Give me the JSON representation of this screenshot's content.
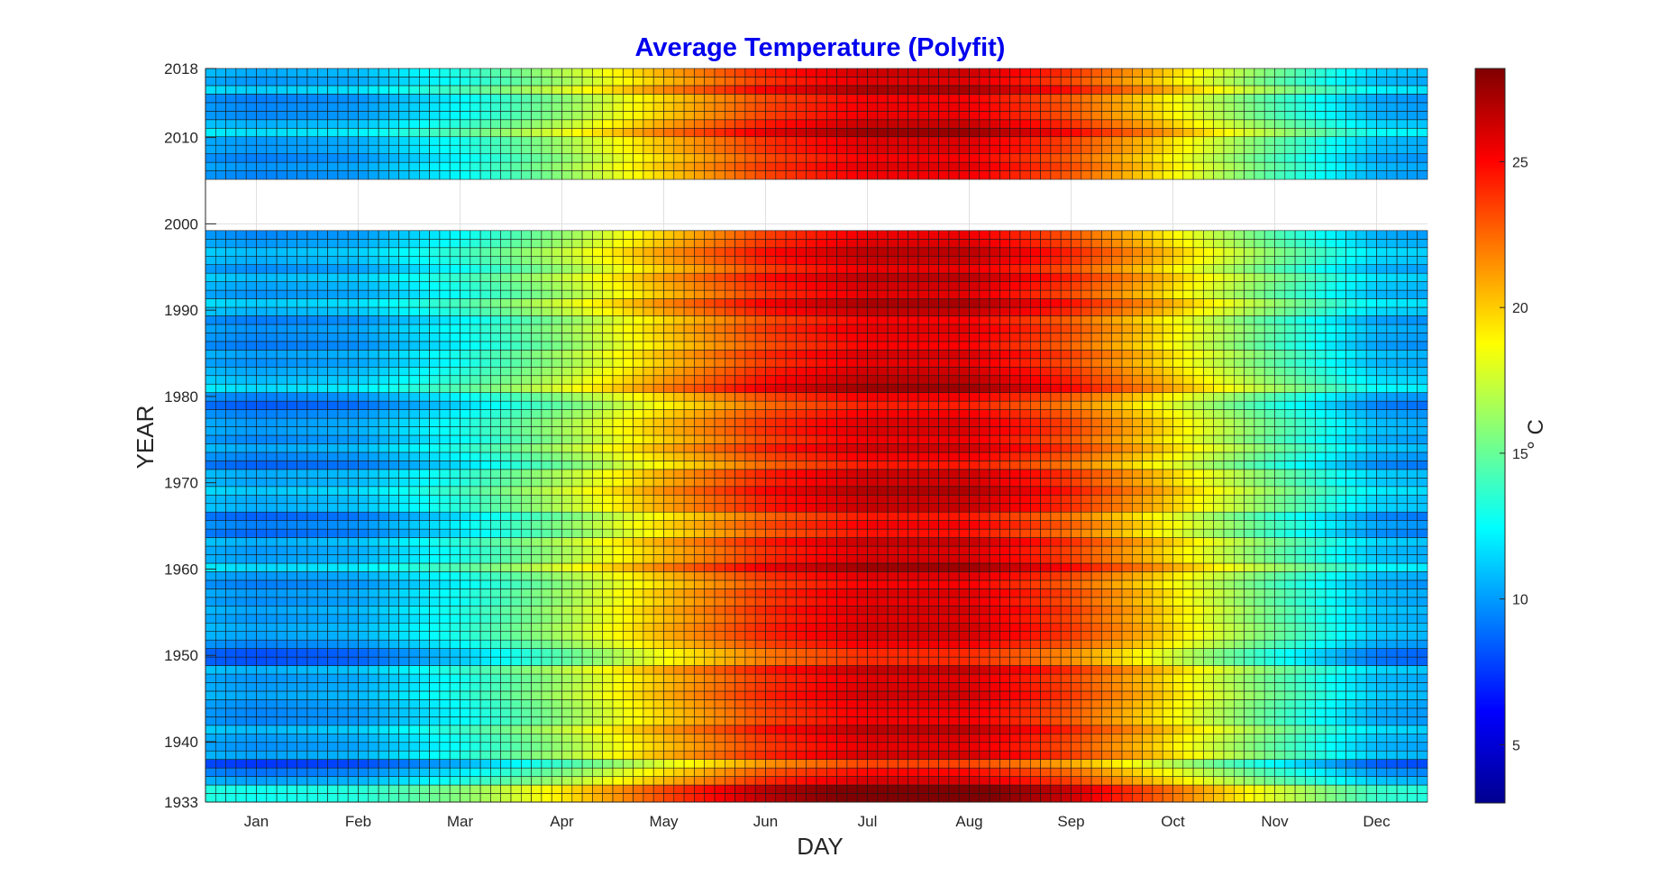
{
  "chart_data": {
    "type": "heatmap",
    "title": "Average Temperature (Polyfit)",
    "xlabel": "DAY",
    "ylabel": "YEAR",
    "colorbar_label": "° C",
    "x_ticks": [
      "Jan",
      "Feb",
      "Mar",
      "Apr",
      "May",
      "Jun",
      "Jul",
      "Aug",
      "Sep",
      "Oct",
      "Nov",
      "Dec"
    ],
    "y_ticks": [
      1933,
      1940,
      1950,
      1960,
      1970,
      1980,
      1990,
      2000,
      2010,
      2018
    ],
    "y_range": [
      1933,
      2018
    ],
    "colorbar_ticks": [
      5,
      10,
      15,
      20,
      25
    ],
    "colorbar_range": [
      3,
      28.2
    ],
    "colormap": "jet",
    "grid": true,
    "missing_years": [
      2000,
      2001,
      2002,
      2003,
      2004,
      2005
    ],
    "series": [
      {
        "year_range": [
          1933,
          1999
        ]
      },
      {
        "year_range": [
          2006,
          2018
        ]
      }
    ],
    "typical_profile": {
      "months": [
        "Jan",
        "Feb",
        "Mar",
        "Apr",
        "May",
        "Jun",
        "Jul",
        "Aug",
        "Sep",
        "Oct",
        "Nov",
        "Dec"
      ],
      "values": [
        10,
        10.5,
        13,
        16.5,
        20.5,
        24,
        26,
        26,
        23.5,
        19.5,
        15,
        11
      ]
    },
    "year_anomalies": {
      "1933": 2.5,
      "1934": 2.0,
      "1936": -0.5,
      "1937": -2.5,
      "1942": -1.0,
      "1949": -2.5,
      "1950": -1.5,
      "1956": -1.0,
      "1960": 1.0,
      "1964": -1.5,
      "1966": -1.0,
      "1969": 1.2,
      "1972": -1.0,
      "1975": -1.2,
      "1978": -1.0,
      "1979": -1.5,
      "1981": 1.5,
      "1986": -1.0,
      "1989": -1.5,
      "1991": 1.5,
      "1994": 1.0,
      "2008": -1.0,
      "2011": 1.0,
      "2015": -1.0,
      "2016": 1.0
    }
  }
}
